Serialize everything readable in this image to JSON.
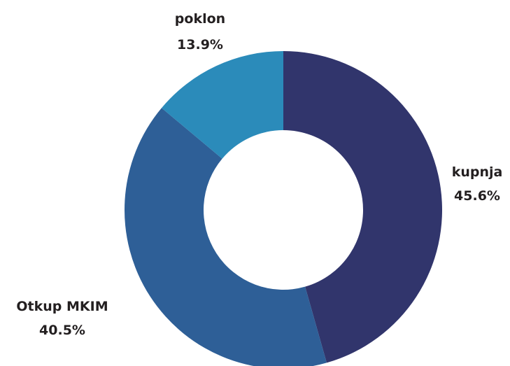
{
  "chart_data": {
    "type": "pie",
    "donut": true,
    "title": "",
    "start_angle_deg": 0,
    "direction": "clockwise",
    "slices": [
      {
        "label": "kupnja",
        "value": 45.6,
        "value_label": "45.6%",
        "color": "#31356c"
      },
      {
        "label": "Otkup MKIM",
        "value": 40.5,
        "value_label": "40.5%",
        "color": "#2e5f97"
      },
      {
        "label": "poklon",
        "value": 13.9,
        "value_label": "13.9%",
        "color": "#2b8bba"
      }
    ],
    "legend": "none"
  }
}
